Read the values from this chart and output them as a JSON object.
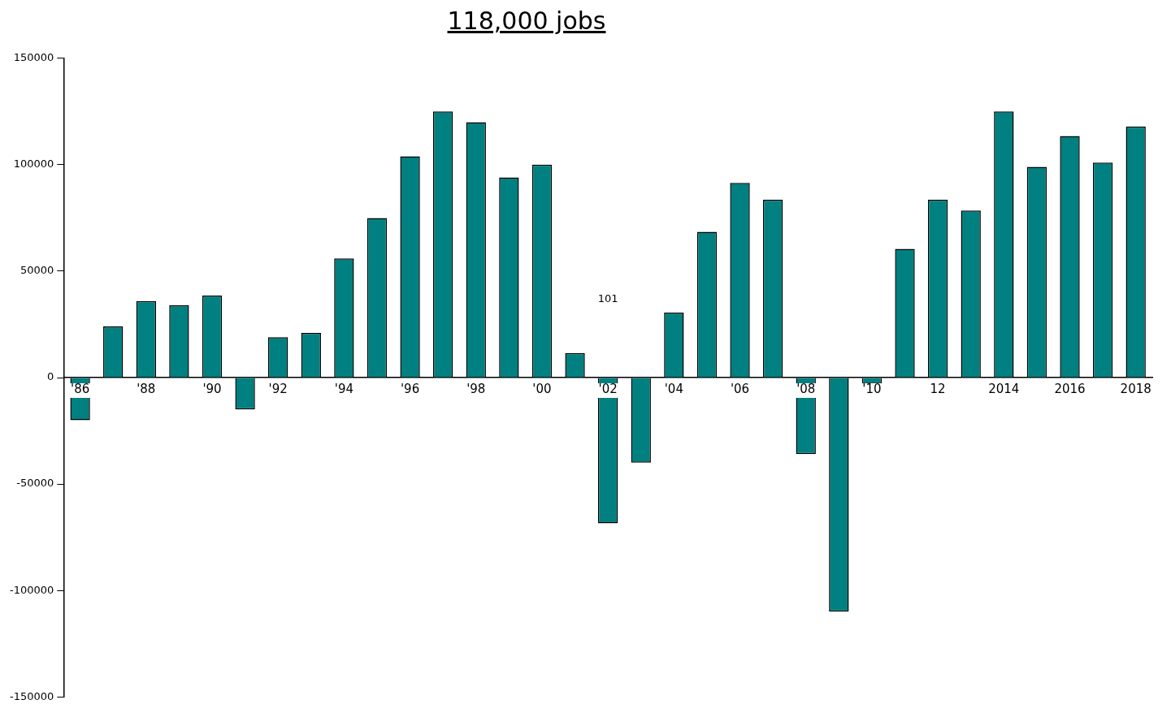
{
  "chart_data": {
    "type": "bar",
    "title": "118,000 jobs",
    "categories": [
      "'86",
      null,
      "'88",
      null,
      "'90",
      null,
      "'92",
      null,
      "'94",
      null,
      "'96",
      null,
      "'98",
      null,
      "'00",
      null,
      "'02",
      null,
      "'04",
      null,
      "'06",
      null,
      "'08",
      null,
      "'10",
      null,
      "12",
      null,
      "2014",
      null,
      "2016",
      null,
      "2018"
    ],
    "values": [
      -20000,
      24000,
      36000,
      34000,
      38500,
      -15000,
      19000,
      21000,
      56000,
      75000,
      104000,
      125000,
      120000,
      94000,
      100000,
      11500,
      -68500,
      -40000,
      30500,
      68500,
      91500,
      83500,
      -36000,
      -110000,
      -3000,
      60500,
      83500,
      78500,
      125000,
      99000,
      113500,
      101000,
      118000
    ],
    "color": "#008080",
    "ylim": [
      -150000,
      150000
    ],
    "yticks": [
      -150000,
      -100000,
      -50000,
      0,
      50000,
      100000,
      150000
    ],
    "grid": false,
    "legend": false,
    "annotations": [
      "101"
    ]
  }
}
